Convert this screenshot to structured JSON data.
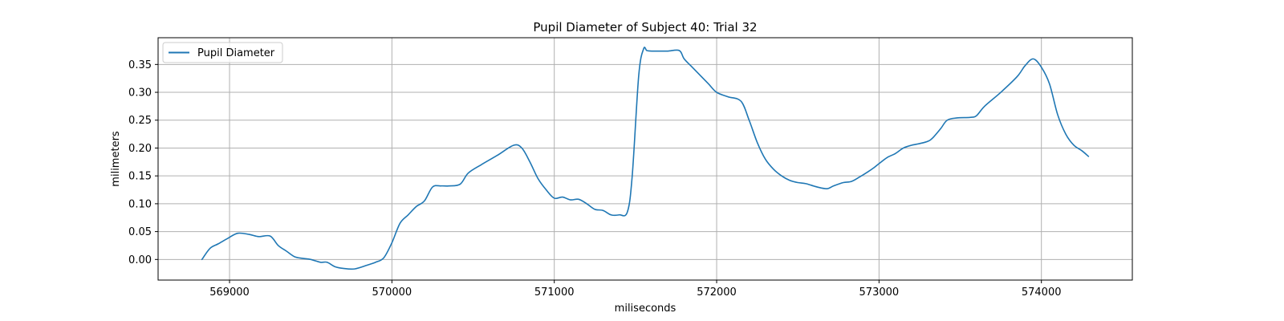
{
  "chart_data": {
    "type": "line",
    "title": "Pupil Diameter of Subject 40: Trial 32",
    "xlabel": "miliseconds",
    "ylabel": "milimeters",
    "xlim": [
      568560,
      574560
    ],
    "ylim": [
      -0.037,
      0.398
    ],
    "xticks": [
      569000,
      570000,
      571000,
      572000,
      573000,
      574000
    ],
    "yticks": [
      0.0,
      0.05,
      0.1,
      0.15,
      0.2,
      0.25,
      0.3,
      0.35
    ],
    "xtick_labels": [
      "569000",
      "570000",
      "571000",
      "572000",
      "573000",
      "574000"
    ],
    "ytick_labels": [
      "0.00",
      "0.05",
      "0.10",
      "0.15",
      "0.20",
      "0.25",
      "0.30",
      "0.35"
    ],
    "grid": true,
    "legend_position": "top-left",
    "series": [
      {
        "name": "Pupil Diameter",
        "color": "#1f77b4",
        "x": [
          568830,
          568880,
          568930,
          568990,
          569050,
          569120,
          569180,
          569250,
          569300,
          569350,
          569400,
          569450,
          569500,
          569560,
          569600,
          569650,
          569700,
          569770,
          569850,
          569900,
          569950,
          570000,
          570050,
          570100,
          570150,
          570200,
          570250,
          570300,
          570350,
          570420,
          570470,
          570550,
          570650,
          570750,
          570800,
          570850,
          570900,
          570950,
          571000,
          571050,
          571100,
          571150,
          571200,
          571250,
          571300,
          571350,
          571400,
          571450,
          571480,
          571520,
          571550,
          571570,
          571600,
          571650,
          571700,
          571770,
          571800,
          571850,
          571900,
          571950,
          572000,
          572070,
          572150,
          572200,
          572250,
          572300,
          572350,
          572400,
          572450,
          572500,
          572550,
          572620,
          572680,
          572720,
          572780,
          572830,
          572880,
          572930,
          572970,
          573000,
          573050,
          573100,
          573150,
          573200,
          573250,
          573300,
          573330,
          573380,
          573420,
          573480,
          573560,
          573600,
          573650,
          573750,
          573850,
          573900,
          573950,
          574000,
          574050,
          574100,
          574150,
          574200,
          574250,
          574290
        ],
        "y": [
          0.0,
          0.02,
          0.028,
          0.038,
          0.047,
          0.045,
          0.041,
          0.042,
          0.025,
          0.015,
          0.005,
          0.002,
          0.0,
          -0.005,
          -0.005,
          -0.013,
          -0.016,
          -0.017,
          -0.01,
          -0.005,
          0.003,
          0.03,
          0.065,
          0.08,
          0.095,
          0.105,
          0.13,
          0.132,
          0.132,
          0.135,
          0.155,
          0.17,
          0.187,
          0.205,
          0.2,
          0.175,
          0.145,
          0.125,
          0.11,
          0.112,
          0.107,
          0.108,
          0.1,
          0.09,
          0.088,
          0.08,
          0.08,
          0.085,
          0.15,
          0.33,
          0.378,
          0.375,
          0.374,
          0.374,
          0.374,
          0.375,
          0.36,
          0.345,
          0.33,
          0.315,
          0.3,
          0.292,
          0.284,
          0.25,
          0.21,
          0.18,
          0.162,
          0.15,
          0.142,
          0.138,
          0.136,
          0.13,
          0.127,
          0.132,
          0.138,
          0.14,
          0.148,
          0.157,
          0.165,
          0.172,
          0.183,
          0.19,
          0.2,
          0.205,
          0.208,
          0.212,
          0.218,
          0.235,
          0.25,
          0.254,
          0.255,
          0.258,
          0.275,
          0.3,
          0.328,
          0.348,
          0.36,
          0.345,
          0.315,
          0.26,
          0.225,
          0.205,
          0.195,
          0.185
        ]
      }
    ]
  }
}
